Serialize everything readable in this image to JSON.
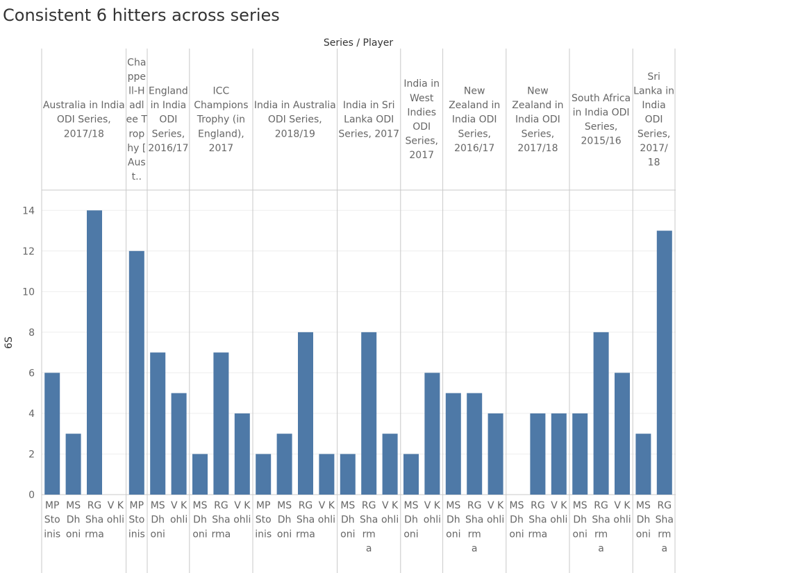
{
  "chart_data": {
    "type": "bar",
    "title": "Consistent 6 hitters across series",
    "header_title": "Series / Player",
    "ylabel": "6S",
    "ylim": [
      0,
      15
    ],
    "yticks": [
      0,
      2,
      4,
      6,
      8,
      10,
      12,
      14
    ],
    "grid": true,
    "bar_color": "#4e79a7",
    "panels": [
      {
        "series": "Australia in India ODI Series, 2017/18",
        "header_lines": [
          "Australia in India",
          "ODI Series,",
          "2017/18"
        ],
        "players": [
          "MP Stoinis",
          "MS Dhoni",
          "RG Sharma",
          "V Kohli"
        ],
        "player_lines": [
          [
            "MP",
            "Sto",
            "inis"
          ],
          [
            "MS",
            "Dh",
            "oni"
          ],
          [
            "RG",
            "Sha",
            "rma"
          ],
          [
            "V K",
            "ohli"
          ]
        ],
        "values": [
          6,
          3,
          14,
          0
        ]
      },
      {
        "series": "Chappell-Hadlee Trophy [Aust...",
        "header_lines": [
          "Cha",
          "ppe",
          "ll-H",
          "adl",
          "ee T",
          "rop",
          "hy [",
          "Aus",
          "t.."
        ],
        "players": [
          "MP Stoinis"
        ],
        "player_lines": [
          [
            "MP",
            "Sto",
            "inis"
          ]
        ],
        "values": [
          12
        ]
      },
      {
        "series": "England in India ODI Series, 2016/17",
        "header_lines": [
          "England",
          "in India",
          "ODI",
          "Series,",
          "2016/17"
        ],
        "players": [
          "MS Dhoni",
          "V Kohli"
        ],
        "player_lines": [
          [
            "MS",
            "Dh",
            "oni"
          ],
          [
            "V K",
            "ohli"
          ]
        ],
        "values": [
          7,
          5
        ]
      },
      {
        "series": "ICC Champions Trophy (in England), 2017",
        "header_lines": [
          "ICC",
          "Champions",
          "Trophy (in",
          "England),",
          "2017"
        ],
        "players": [
          "MS Dhoni",
          "RG Sharma",
          "V Kohli"
        ],
        "player_lines": [
          [
            "MS",
            "Dh",
            "oni"
          ],
          [
            "RG",
            "Sha",
            "rma"
          ],
          [
            "V K",
            "ohli"
          ]
        ],
        "values": [
          2,
          7,
          4
        ]
      },
      {
        "series": "India in Australia ODI Series, 2018/19",
        "header_lines": [
          "India in Australia",
          "ODI Series,",
          "2018/19"
        ],
        "players": [
          "MP Stoinis",
          "MS Dhoni",
          "RG Sharma",
          "V Kohli"
        ],
        "player_lines": [
          [
            "MP",
            "Sto",
            "inis"
          ],
          [
            "MS",
            "Dh",
            "oni"
          ],
          [
            "RG",
            "Sha",
            "rma"
          ],
          [
            "V K",
            "ohli"
          ]
        ],
        "values": [
          2,
          3,
          8,
          2
        ]
      },
      {
        "series": "India in Sri Lanka ODI Series, 2017",
        "header_lines": [
          "India in Sri",
          "Lanka ODI",
          "Series, 2017"
        ],
        "players": [
          "MS Dhoni",
          "RG Sharma",
          "V Kohli"
        ],
        "player_lines": [
          [
            "MS",
            "Dh",
            "oni"
          ],
          [
            "RG",
            "Sha",
            "rm",
            "a"
          ],
          [
            "V K",
            "ohli"
          ]
        ],
        "values": [
          2,
          8,
          3
        ]
      },
      {
        "series": "India in West Indies ODI Series, 2017",
        "header_lines": [
          "India in",
          "West",
          "Indies",
          "ODI",
          "Series,",
          "2017"
        ],
        "players": [
          "MS Dhoni",
          "V Kohli"
        ],
        "player_lines": [
          [
            "MS",
            "Dh",
            "oni"
          ],
          [
            "V K",
            "ohli"
          ]
        ],
        "values": [
          2,
          6
        ]
      },
      {
        "series": "New Zealand in India ODI Series, 2016/17",
        "header_lines": [
          "New",
          "Zealand in",
          "India ODI",
          "Series,",
          "2016/17"
        ],
        "players": [
          "MS Dhoni",
          "RG Sharma",
          "V Kohli"
        ],
        "player_lines": [
          [
            "MS",
            "Dh",
            "oni"
          ],
          [
            "RG",
            "Sha",
            "rm",
            "a"
          ],
          [
            "V K",
            "ohli"
          ]
        ],
        "values": [
          5,
          5,
          4
        ]
      },
      {
        "series": "New Zealand in India ODI Series, 2017/18",
        "header_lines": [
          "New",
          "Zealand in",
          "India ODI",
          "Series,",
          "2017/18"
        ],
        "players": [
          "MS Dhoni",
          "RG Sharma",
          "V Kohli"
        ],
        "player_lines": [
          [
            "MS",
            "Dh",
            "oni"
          ],
          [
            "RG",
            "Sha",
            "rma"
          ],
          [
            "V K",
            "ohli"
          ]
        ],
        "values": [
          0,
          4,
          4
        ]
      },
      {
        "series": "South Africa in India ODI Series, 2015/16",
        "header_lines": [
          "South Africa",
          "in India ODI",
          "Series,",
          "2015/16"
        ],
        "players": [
          "MS Dhoni",
          "RG Sharma",
          "V Kohli"
        ],
        "player_lines": [
          [
            "MS",
            "Dh",
            "oni"
          ],
          [
            "RG",
            "Sha",
            "rm",
            "a"
          ],
          [
            "V K",
            "ohli"
          ]
        ],
        "values": [
          4,
          8,
          6
        ]
      },
      {
        "series": "Sri Lanka in India ODI Series, 2017/18",
        "header_lines": [
          "Sri",
          "Lanka in",
          "India",
          "ODI",
          "Series,",
          "2017/",
          "18"
        ],
        "players": [
          "MS Dhoni",
          "RG Sharma"
        ],
        "player_lines": [
          [
            "MS",
            "Dh",
            "oni"
          ],
          [
            "RG",
            "Sha",
            "rm",
            "a"
          ]
        ],
        "values": [
          3,
          13
        ]
      }
    ]
  }
}
